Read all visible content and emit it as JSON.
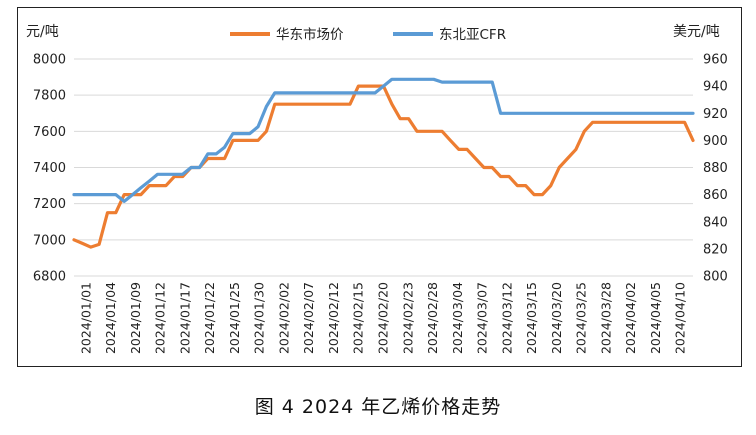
{
  "caption": "图 4 2024 年乙烯价格走势",
  "chart_data": {
    "type": "line",
    "left_unit": "元/吨",
    "right_unit": "美元/吨",
    "left_axis": {
      "min": 6800,
      "max": 8000,
      "step": 200,
      "ticks": [
        "6800",
        "7000",
        "7200",
        "7400",
        "7600",
        "7800",
        "8000"
      ]
    },
    "right_axis": {
      "min": 800,
      "max": 960,
      "step": 20,
      "ticks": [
        "800",
        "820",
        "840",
        "860",
        "880",
        "900",
        "920",
        "940",
        "960"
      ]
    },
    "x_tick_labels": [
      "2024/01/01",
      "2024/01/04",
      "2024/01/09",
      "2024/01/12",
      "2024/01/17",
      "2024/01/22",
      "2024/01/25",
      "2024/01/30",
      "2024/02/02",
      "2024/02/07",
      "2024/02/12",
      "2024/02/15",
      "2024/02/20",
      "2024/02/23",
      "2024/02/28",
      "2024/03/04",
      "2024/03/07",
      "2024/03/12",
      "2024/03/15",
      "2024/03/20",
      "2024/03/25",
      "2024/03/28",
      "2024/04/02",
      "2024/04/05",
      "2024/04/10"
    ],
    "legend_position": "top-center",
    "series": [
      {
        "name": "华东市场价",
        "axis": "left",
        "color": "#ED7D31",
        "values": [
          7000,
          6980,
          6960,
          6975,
          7150,
          7150,
          7250,
          7250,
          7250,
          7300,
          7300,
          7300,
          7350,
          7350,
          7400,
          7400,
          7450,
          7450,
          7450,
          7550,
          7550,
          7550,
          7550,
          7600,
          7750,
          7750,
          7750,
          7750,
          7750,
          7750,
          7750,
          7750,
          7750,
          7750,
          7850,
          7850,
          7850,
          7850,
          7750,
          7670,
          7670,
          7600,
          7600,
          7600,
          7600,
          7550,
          7500,
          7500,
          7450,
          7400,
          7400,
          7350,
          7350,
          7300,
          7300,
          7250,
          7250,
          7300,
          7400,
          7450,
          7500,
          7600,
          7650,
          7650,
          7650,
          7650,
          7650,
          7650,
          7650,
          7650,
          7650,
          7650,
          7650,
          7650,
          7550
        ]
      },
      {
        "name": "东北亚CFR",
        "axis": "right",
        "color": "#5B9BD5",
        "values": [
          860,
          860,
          860,
          860,
          860,
          860,
          855,
          860,
          865,
          870,
          875,
          875,
          875,
          875,
          880,
          880,
          890,
          890,
          895,
          905,
          905,
          905,
          910,
          925,
          935,
          935,
          935,
          935,
          935,
          935,
          935,
          935,
          935,
          935,
          935,
          935,
          935,
          940,
          945,
          945,
          945,
          945,
          945,
          945,
          943,
          943,
          943,
          943,
          943,
          943,
          943,
          920,
          920,
          920,
          920,
          920,
          920,
          920,
          920,
          920,
          920,
          920,
          920,
          920,
          920,
          920,
          920,
          920,
          920,
          920,
          920,
          920,
          920,
          920,
          920
        ]
      }
    ]
  }
}
